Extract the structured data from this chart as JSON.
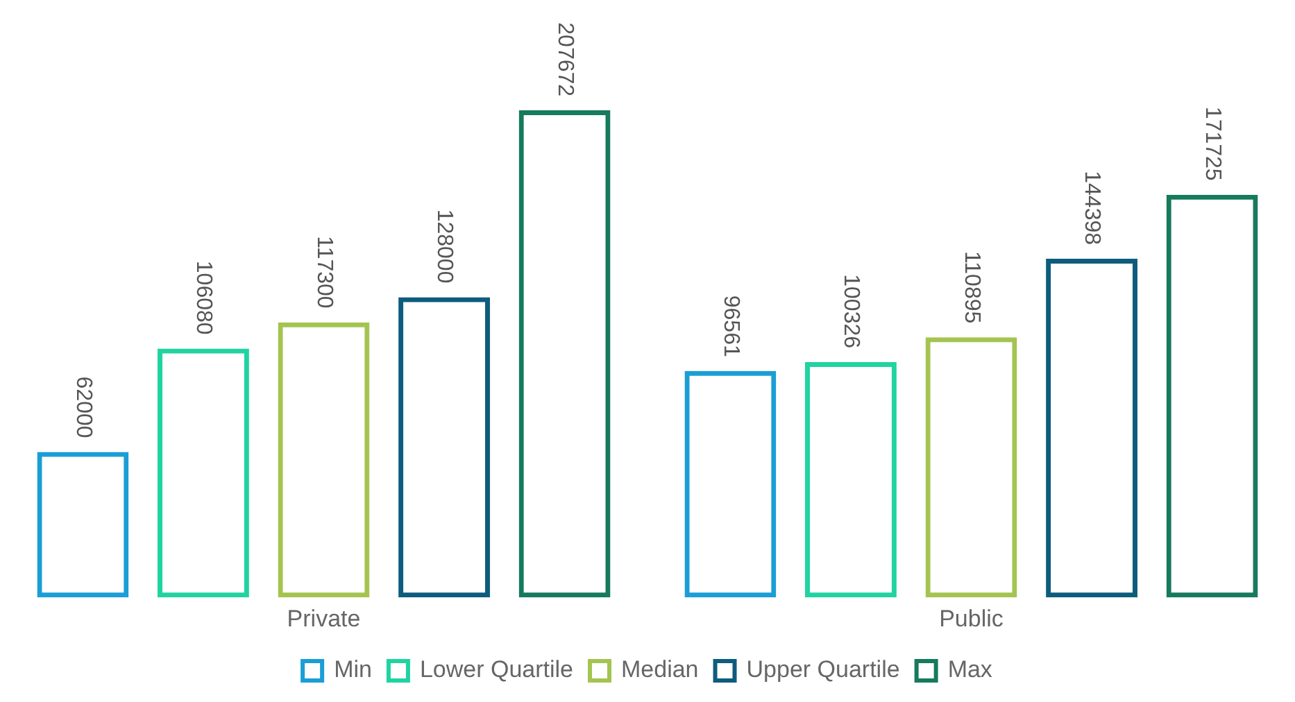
{
  "chart_data": {
    "type": "bar",
    "categories": [
      "Private",
      "Public"
    ],
    "series": [
      {
        "name": "Min",
        "color": "#1a9ed6",
        "values": [
          62000,
          96561
        ]
      },
      {
        "name": "Lower Quartile",
        "color": "#20d3a1",
        "values": [
          106080,
          100326
        ]
      },
      {
        "name": "Median",
        "color": "#a4c450",
        "values": [
          117300,
          110895
        ]
      },
      {
        "name": "Upper Quartile",
        "color": "#0d5c7d",
        "values": [
          128000,
          144398
        ]
      },
      {
        "name": "Max",
        "color": "#167a5d",
        "values": [
          207672,
          171725
        ]
      }
    ],
    "data_labels": true,
    "legend": "bottom",
    "tick_labels": "x"
  }
}
